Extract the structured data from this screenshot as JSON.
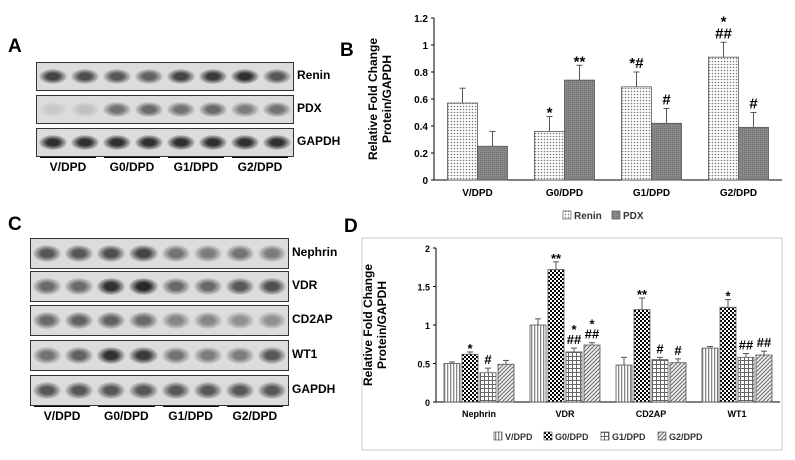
{
  "panels": {
    "a": "A",
    "b": "B",
    "c": "C",
    "d": "D"
  },
  "blot_a": {
    "rows": [
      {
        "label": "Renin",
        "intensity": [
          0.8,
          0.75,
          0.7,
          0.65,
          0.8,
          0.85,
          0.9,
          0.7
        ]
      },
      {
        "label": "PDX",
        "intensity": [
          0.1,
          0.15,
          0.55,
          0.6,
          0.55,
          0.6,
          0.5,
          0.55
        ]
      },
      {
        "label": "GAPDH",
        "intensity": [
          0.9,
          0.9,
          0.9,
          0.9,
          0.9,
          0.9,
          0.9,
          0.9
        ]
      }
    ],
    "groups": [
      "V/DPD",
      "G0/DPD",
      "G1/DPD",
      "G2/DPD"
    ]
  },
  "blot_c": {
    "rows": [
      {
        "label": "Nephrin",
        "intensity": [
          0.7,
          0.7,
          0.75,
          0.8,
          0.55,
          0.5,
          0.55,
          0.5
        ]
      },
      {
        "label": "VDR",
        "intensity": [
          0.6,
          0.6,
          0.9,
          0.95,
          0.6,
          0.6,
          0.7,
          0.75
        ]
      },
      {
        "label": "CD2AP",
        "intensity": [
          0.6,
          0.65,
          0.65,
          0.6,
          0.45,
          0.45,
          0.4,
          0.4
        ]
      },
      {
        "label": "WT1",
        "intensity": [
          0.55,
          0.65,
          0.9,
          0.85,
          0.55,
          0.5,
          0.5,
          0.7
        ]
      },
      {
        "label": "GAPDH",
        "intensity": [
          0.7,
          0.7,
          0.7,
          0.7,
          0.7,
          0.7,
          0.7,
          0.7
        ]
      }
    ],
    "groups": [
      "V/DPD",
      "G0/DPD",
      "G1/DPD",
      "G2/DPD"
    ]
  },
  "chart_data": [
    {
      "type": "bar",
      "ylabel": "Relative Fold Change Protein/GAPDH",
      "ylim": [
        0,
        1.2
      ],
      "yticks": [
        "0",
        "0.2",
        "0.4",
        "0.6",
        "0.8",
        "1",
        "1.2"
      ],
      "categories": [
        "V/DPD",
        "G0/DPD",
        "G1/DPD",
        "G2/DPD"
      ],
      "series": [
        {
          "name": "Renin",
          "values": [
            0.57,
            0.36,
            0.69,
            0.91
          ],
          "errors": [
            0.11,
            0.11,
            0.11,
            0.11
          ]
        },
        {
          "name": "PDX",
          "values": [
            0.25,
            0.74,
            0.42,
            0.39
          ],
          "errors": [
            0.11,
            0.11,
            0.11,
            0.11
          ]
        }
      ],
      "annotations": [
        [
          "",
          "*",
          "*#",
          "*\n##"
        ],
        [
          "",
          "**",
          "#",
          "#"
        ]
      ],
      "legend_position": "bottom",
      "grid": false
    },
    {
      "type": "bar",
      "ylabel": "Relative Fold Change Protein/GAPDH",
      "ylim": [
        0,
        2
      ],
      "yticks": [
        "0",
        "0.5",
        "1",
        "1.5",
        "2"
      ],
      "categories": [
        "Nephrin",
        "VDR",
        "CD2AP",
        "WT1"
      ],
      "series": [
        {
          "name": "V/DPD",
          "values": [
            0.5,
            1.0,
            0.48,
            0.7
          ],
          "errors": [
            0.02,
            0.08,
            0.1,
            0.02
          ]
        },
        {
          "name": "G0/DPD",
          "values": [
            0.62,
            1.72,
            1.2,
            1.23
          ],
          "errors": [
            0.03,
            0.1,
            0.15,
            0.1
          ]
        },
        {
          "name": "G1/DPD",
          "values": [
            0.38,
            0.65,
            0.55,
            0.58
          ],
          "errors": [
            0.06,
            0.05,
            0.03,
            0.05
          ]
        },
        {
          "name": "G2/DPD",
          "values": [
            0.49,
            0.74,
            0.51,
            0.61
          ],
          "errors": [
            0.05,
            0.03,
            0.05,
            0.05
          ]
        }
      ],
      "annotations": [
        [
          "",
          "",
          "",
          ""
        ],
        [
          "*",
          "**",
          "**",
          "*"
        ],
        [
          "#",
          "*\n##",
          "#",
          "##"
        ],
        [
          "",
          "*\n##",
          "#",
          "##"
        ]
      ],
      "legend_position": "bottom",
      "grid": false
    }
  ]
}
